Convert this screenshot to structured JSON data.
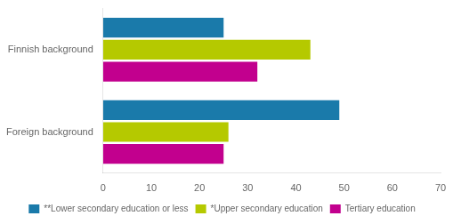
{
  "chart_data": {
    "type": "bar",
    "orientation": "horizontal",
    "categories": [
      "Finnish background",
      "Foreign background"
    ],
    "series": [
      {
        "name": "**Lower secondary education or less",
        "color": "#1a7aaa",
        "values": [
          25,
          49
        ]
      },
      {
        "name": "*Upper secondary education",
        "color": "#b5c900",
        "values": [
          43,
          26
        ]
      },
      {
        "name": "Tertiary education",
        "color": "#c2008e",
        "values": [
          32,
          25
        ]
      }
    ],
    "xlim": [
      0,
      70
    ],
    "xticks": [
      0,
      10,
      20,
      30,
      40,
      50,
      60,
      70
    ],
    "grid": false,
    "legend": "bottom"
  }
}
